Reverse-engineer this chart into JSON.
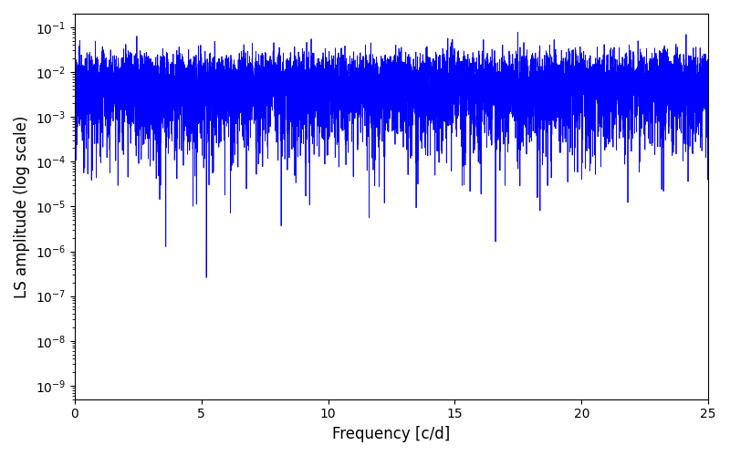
{
  "xlabel": "Frequency [c/d]",
  "ylabel": "LS amplitude (log scale)",
  "xlim": [
    0,
    25
  ],
  "ylim": [
    5e-10,
    0.2
  ],
  "line_color": "blue",
  "line_width": 0.6,
  "fig_width": 8.0,
  "fig_height": 5.0,
  "dpi": 100,
  "background_color": "#ffffff",
  "n_points": 8000,
  "seed": 12345,
  "freq_max": 25.0
}
